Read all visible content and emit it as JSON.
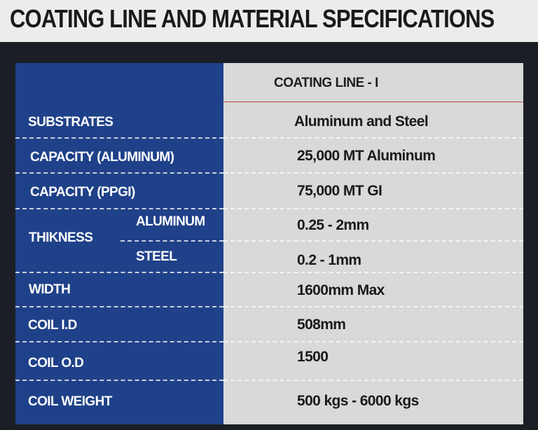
{
  "title": "COATING LINE AND MATERIAL SPECIFICATIONS",
  "column_header": "COATING LINE - I",
  "rows": {
    "substrates": {
      "label": "SUBSTRATES",
      "value": "Aluminum and Steel"
    },
    "capacity_aluminum": {
      "label": "CAPACITY (ALUMINUM)",
      "value": "25,000 MT Aluminum"
    },
    "capacity_ppgi": {
      "label": "CAPACITY (PPGI)",
      "value": "75,000 MT GI"
    },
    "thickness": {
      "label": "THIKNESS",
      "aluminum_label": "ALUMINUM",
      "aluminum_value": "0.25 - 2mm",
      "steel_label": "STEEL",
      "steel_value": "0.2 - 1mm"
    },
    "width": {
      "label": "WIDTH",
      "value": "1600mm Max"
    },
    "coil_id": {
      "label": "COIL I.D",
      "value": "508mm"
    },
    "coil_od": {
      "label": "COIL O.D",
      "value": "1500"
    },
    "coil_weight": {
      "label": "COIL WEIGHT",
      "value": "500 kgs - 6000 kgs"
    }
  },
  "colors": {
    "label_column": "#1f4189",
    "value_column": "#d9d9d9",
    "header_band": "#ececec",
    "background": "#1b1e24",
    "header_rule": "#c2434a"
  }
}
